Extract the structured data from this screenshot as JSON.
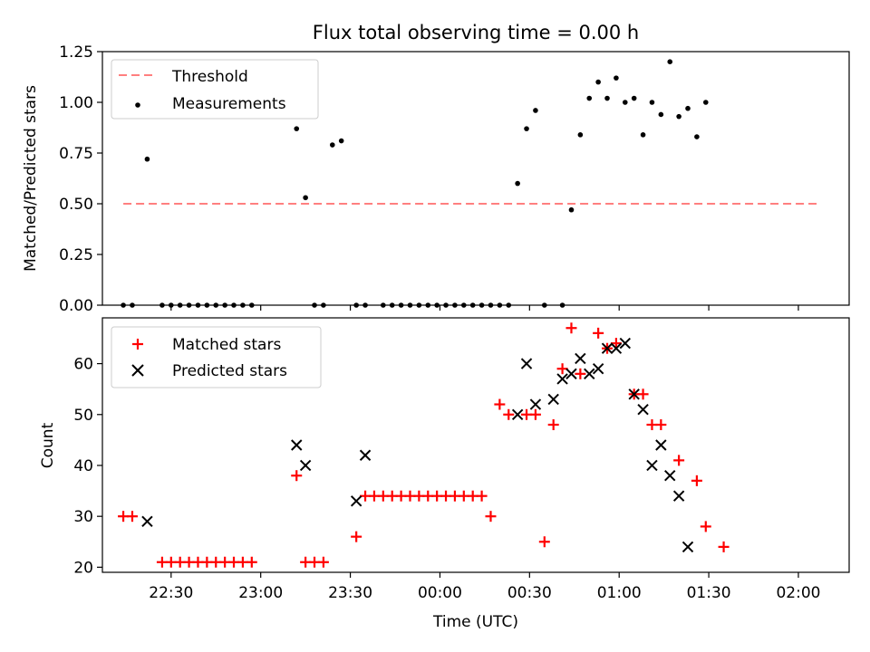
{
  "figure": {
    "title": "Flux total observing time = 0.00 h",
    "x_tick_labels": [
      "22:30",
      "23:00",
      "23:30",
      "00:00",
      "00:30",
      "01:00",
      "01:30",
      "02:00"
    ],
    "xlabel": "Time (UTC)"
  },
  "chart_data": [
    {
      "type": "scatter",
      "title": "Flux total observing time = 0.00 h",
      "xlabel": "",
      "ylabel": "Matched/Predicted stars",
      "xlim": [
        "22:07",
        "02:17"
      ],
      "ylim": [
        0,
        1.25
      ],
      "y_ticks": [
        "0.00",
        "0.25",
        "0.50",
        "0.75",
        "1.00",
        "1.25"
      ],
      "grid": false,
      "legend": "top-left",
      "series": [
        {
          "name": "Threshold",
          "kind": "dashed-line",
          "color": "#ff7f7f",
          "x": [
            "22:14",
            "02:07"
          ],
          "y": [
            0.5,
            0.5
          ]
        },
        {
          "name": "Measurements",
          "kind": "dot",
          "color": "#000000",
          "x": [
            "22:14",
            "22:17",
            "22:22",
            "22:27",
            "22:30",
            "22:33",
            "22:36",
            "22:39",
            "22:42",
            "22:45",
            "22:48",
            "22:51",
            "22:54",
            "22:57",
            "23:12",
            "23:15",
            "23:18",
            "23:21",
            "23:24",
            "23:27",
            "23:32",
            "23:35",
            "23:41",
            "23:44",
            "23:47",
            "23:50",
            "23:53",
            "23:56",
            "23:59",
            "24:02",
            "24:05",
            "24:08",
            "24:11",
            "24:14",
            "24:17",
            "24:20",
            "24:23",
            "24:26",
            "24:29",
            "24:32",
            "24:35",
            "24:41",
            "24:44",
            "24:47",
            "24:50",
            "24:53",
            "24:56",
            "24:59",
            "25:02",
            "25:05",
            "25:08",
            "25:11",
            "25:14",
            "25:17",
            "25:20",
            "25:23",
            "25:26",
            "25:29",
            "25:32",
            "25:35",
            "25:38",
            "25:41",
            "25:44",
            "25:47",
            "25:50",
            "25:53",
            "25:56",
            "25:59",
            "26:02",
            "26:07"
          ],
          "y": [
            0.0,
            0.0,
            0.72,
            0.0,
            0.0,
            0.0,
            0.0,
            0.0,
            0.0,
            0.0,
            0.0,
            0.0,
            0.0,
            0.0,
            0.87,
            0.53,
            0.0,
            0.0,
            0.79,
            0.81,
            0.0,
            0.0,
            0.0,
            0.0,
            0.0,
            0.0,
            0.0,
            0.0,
            0.0,
            0.0,
            0.0,
            0.0,
            0.0,
            0.0,
            0.0,
            0.0,
            0.0,
            0.6,
            0.87,
            0.96,
            0.0,
            0.0,
            0.47,
            0.84,
            1.02,
            1.1,
            1.02,
            1.12,
            1.0,
            1.02,
            0.84,
            1.0,
            0.94,
            1.2,
            0.93,
            0.97,
            0.83,
            1.0,
            null,
            null,
            null,
            null,
            null,
            null,
            null,
            null,
            null,
            null,
            null,
            null
          ]
        }
      ]
    },
    {
      "type": "scatter",
      "xlabel": "Time (UTC)",
      "ylabel": "Count",
      "xlim": [
        "22:07",
        "02:17"
      ],
      "ylim": [
        19,
        69
      ],
      "y_ticks": [
        "20",
        "30",
        "40",
        "50",
        "60"
      ],
      "grid": false,
      "legend": "top-left",
      "series": [
        {
          "name": "Matched stars",
          "kind": "plus",
          "color": "#ff0000",
          "x": [
            "22:14",
            "22:17",
            "22:27",
            "22:30",
            "22:33",
            "22:36",
            "22:39",
            "22:42",
            "22:45",
            "22:48",
            "22:51",
            "22:54",
            "22:57",
            "23:12",
            "23:15",
            "23:18",
            "23:21",
            "23:32",
            "23:35",
            "23:38",
            "23:41",
            "23:44",
            "23:47",
            "23:50",
            "23:53",
            "23:56",
            "23:59",
            "24:02",
            "24:05",
            "24:08",
            "24:11",
            "24:14",
            "24:17",
            "24:20",
            "24:23",
            "24:29",
            "24:32",
            "24:35",
            "24:38",
            "24:41",
            "24:44",
            "24:47",
            "24:53",
            "24:56",
            "24:59",
            "25:05",
            "25:08",
            "25:11",
            "25:14",
            "25:20",
            "25:26",
            "25:29",
            "25:35",
            "25:38",
            "25:41",
            "25:44",
            "25:47",
            "25:50",
            "25:53",
            "25:56"
          ],
          "y": [
            30,
            30,
            21,
            21,
            21,
            21,
            21,
            21,
            21,
            21,
            21,
            21,
            21,
            38,
            21,
            21,
            21,
            26,
            34,
            34,
            34,
            34,
            34,
            34,
            34,
            34,
            34,
            34,
            34,
            34,
            34,
            34,
            30,
            52,
            50,
            50,
            50,
            25,
            48,
            59,
            67,
            58,
            66,
            63,
            64,
            54,
            54,
            48,
            48,
            41,
            37,
            28,
            24,
            null,
            null,
            null,
            null,
            null,
            null,
            null
          ],
          "note_order": "values listed in time order"
        },
        {
          "name": "Predicted stars",
          "kind": "x",
          "color": "#000000",
          "x": [
            "22:22",
            "23:12",
            "23:15",
            "23:32",
            "23:35",
            "24:26",
            "24:29",
            "24:32",
            "24:38",
            "24:41",
            "24:44",
            "24:47",
            "24:50",
            "24:53",
            "24:56",
            "24:59",
            "25:02",
            "25:05",
            "25:08",
            "25:11",
            "25:14",
            "25:17",
            "25:20",
            "25:23",
            "25:26"
          ],
          "y": [
            29,
            44,
            40,
            33,
            42,
            50,
            60,
            52,
            53,
            57,
            58,
            61,
            58,
            59,
            63,
            63,
            64,
            54,
            51,
            40,
            44,
            38,
            34,
            24,
            null
          ]
        }
      ]
    }
  ]
}
